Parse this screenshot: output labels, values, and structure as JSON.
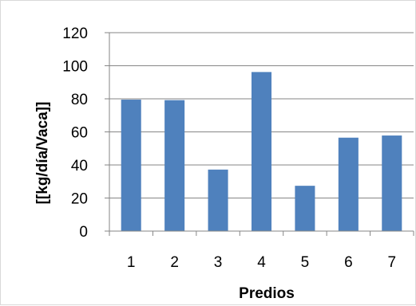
{
  "chart_data": {
    "type": "bar",
    "title": "",
    "xlabel": "Predios",
    "ylabel": "[[kg/día/Vaca]]",
    "categories": [
      "1",
      "2",
      "3",
      "4",
      "5",
      "6",
      "7"
    ],
    "values": [
      79.5,
      79.2,
      37.2,
      96.2,
      27.4,
      56.5,
      57.8
    ],
    "ylim": [
      0,
      120
    ],
    "yticks": [
      0,
      20,
      40,
      60,
      80,
      100,
      120
    ],
    "grid": true,
    "legend": "none",
    "colors": {
      "bar": "#4f81bd",
      "grid": "#868686",
      "axis": "#868686",
      "border": "#d9d9d9"
    }
  }
}
